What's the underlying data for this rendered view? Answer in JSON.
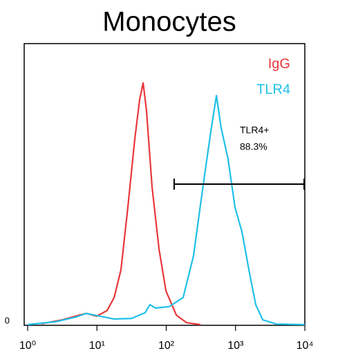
{
  "chart_data": {
    "type": "line",
    "title": "Monocytes",
    "xscale": "log",
    "xlim": [
      1,
      10000
    ],
    "xticks": [
      {
        "value": 1,
        "label": "10⁰"
      },
      {
        "value": 10,
        "label": "10¹"
      },
      {
        "value": 100,
        "label": "10²"
      },
      {
        "value": 1000,
        "label": "10³"
      },
      {
        "value": 10000,
        "label": "10⁴"
      }
    ],
    "ylim": [
      0,
      100
    ],
    "yticks": [
      0
    ],
    "series": [
      {
        "name": "IgG",
        "color": "#e8373b",
        "x": [
          1.58,
          3.15,
          5.6,
          7.05,
          9.9,
          14,
          17.7,
          22.2,
          27.9,
          35.2,
          41.3,
          46.4,
          52,
          62.5,
          78.5,
          99,
          140,
          197,
          312
        ],
        "values": [
          0.3,
          1.7,
          3.4,
          4,
          3,
          5,
          9.6,
          19.5,
          41.6,
          66,
          80,
          86,
          76,
          49,
          27,
          12,
          3.4,
          0.7,
          0
        ]
      },
      {
        "name": "TLR4",
        "color": "#1ec0e8",
        "x": [
          1,
          2.5,
          5,
          7,
          11,
          17.7,
          31.4,
          49.5,
          58,
          70,
          110,
          175,
          247,
          350,
          440,
          530,
          620,
          780,
          985,
          1240,
          1560,
          1960,
          2470,
          3900,
          10000
        ],
        "values": [
          0,
          1,
          2.7,
          4,
          3,
          2,
          2.2,
          4.2,
          7.1,
          5.9,
          6.4,
          9.6,
          24.4,
          51.5,
          68.7,
          81.5,
          70,
          59,
          41.6,
          33,
          19.5,
          7.1,
          1.7,
          0.2,
          0
        ]
      }
    ],
    "annotations": [
      {
        "text": "TLR4+",
        "value": 88.3,
        "value_label": "88.3%",
        "x_range": [
          130,
          10000
        ],
        "y": 50
      }
    ]
  }
}
